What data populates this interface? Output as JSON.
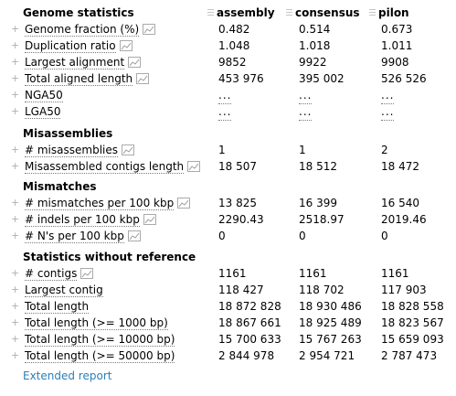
{
  "header": {
    "title": "Genome statistics",
    "columns": [
      "assembly",
      "consensus",
      "pilon"
    ]
  },
  "sections": [
    {
      "title": "",
      "rows": [
        {
          "label": "Genome fraction (%)",
          "values": [
            "0.482",
            "0.514",
            "0.673"
          ],
          "chart": true
        },
        {
          "label": "Duplication ratio",
          "values": [
            "1.048",
            "1.018",
            "1.011"
          ],
          "chart": true
        },
        {
          "label": "Largest alignment",
          "values": [
            "9852",
            "9922",
            "9908"
          ],
          "chart": true
        },
        {
          "label": "Total aligned length",
          "values": [
            "453 976",
            "395 002",
            "526 526"
          ],
          "chart": true
        },
        {
          "label": "NGA50",
          "values": [
            "...",
            "...",
            "..."
          ],
          "chart": false
        },
        {
          "label": "LGA50",
          "values": [
            "...",
            "...",
            "..."
          ],
          "chart": false
        }
      ]
    },
    {
      "title": "Misassemblies",
      "rows": [
        {
          "label": "# misassemblies",
          "values": [
            "1",
            "1",
            "2"
          ],
          "chart": true
        },
        {
          "label": "Misassembled contigs length",
          "values": [
            "18 507",
            "18 512",
            "18 472"
          ],
          "chart": true
        }
      ]
    },
    {
      "title": "Mismatches",
      "rows": [
        {
          "label": "# mismatches per 100 kbp",
          "values": [
            "13 825",
            "16 399",
            "16 540"
          ],
          "chart": true
        },
        {
          "label": "# indels per 100 kbp",
          "values": [
            "2290.43",
            "2518.97",
            "2019.46"
          ],
          "chart": true
        },
        {
          "label": "# N's per 100 kbp",
          "values": [
            "0",
            "0",
            "0"
          ],
          "chart": true
        }
      ]
    },
    {
      "title": "Statistics without reference",
      "rows": [
        {
          "label": "# contigs",
          "values": [
            "1161",
            "1161",
            "1161"
          ],
          "chart": true
        },
        {
          "label": "Largest contig",
          "values": [
            "118 427",
            "118 702",
            "117 903"
          ],
          "chart": false
        },
        {
          "label": "Total length",
          "values": [
            "18 872 828",
            "18 930 486",
            "18 828 558"
          ],
          "chart": false
        },
        {
          "label": "Total length (>= 1000 bp)",
          "values": [
            "18 867 661",
            "18 925 489",
            "18 823 567"
          ],
          "chart": false
        },
        {
          "label": "Total length (>= 10000 bp)",
          "values": [
            "15 700 633",
            "15 767 263",
            "15 659 093"
          ],
          "chart": false
        },
        {
          "label": "Total length (>= 50000 bp)",
          "values": [
            "2 844 978",
            "2 954 721",
            "2 787 473"
          ],
          "chart": false
        }
      ]
    }
  ],
  "footer": {
    "link": "Extended report"
  },
  "colors": {
    "link": "#2b7fb8",
    "plus": "#b0b0b0"
  },
  "icons": {
    "expand": "plus-icon",
    "chart": "bar-chart-icon",
    "drag": "drag-grip-icon"
  }
}
